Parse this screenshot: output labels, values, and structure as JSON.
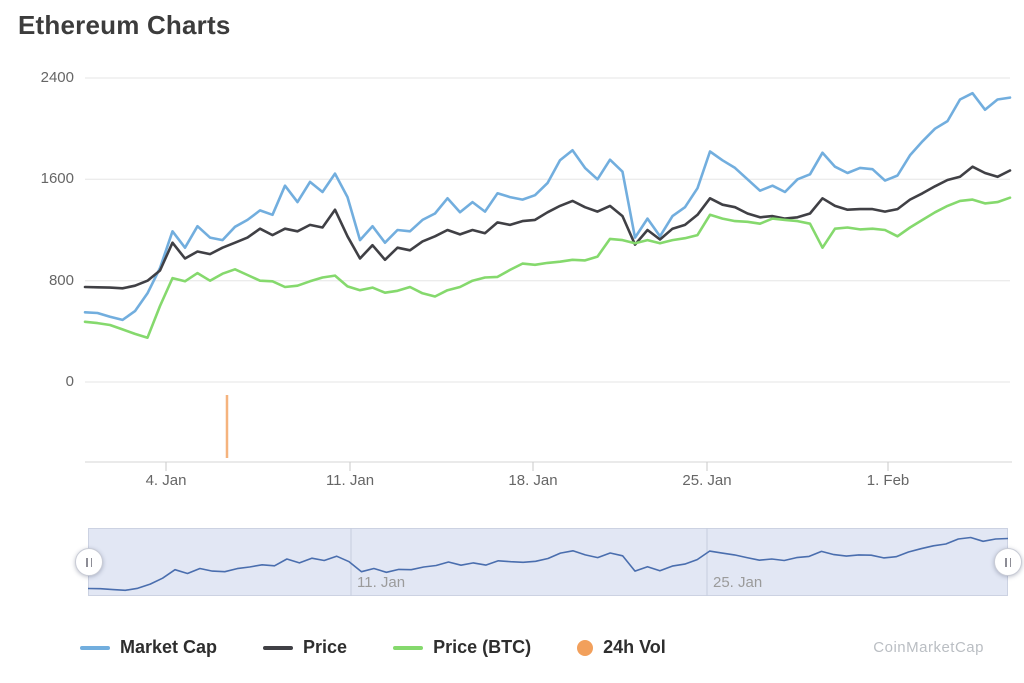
{
  "title": "Ethereum Charts",
  "watermark": "CoinMarketCap",
  "chart_data": {
    "type": "line",
    "title": "Ethereum Charts",
    "xlabel": "",
    "ylabel": "",
    "ylim": [
      0,
      2400
    ],
    "grid": "horizontal",
    "legend_position": "bottom",
    "x_ticks": [
      "4. Jan",
      "11. Jan",
      "18. Jan",
      "25. Jan",
      "1. Feb"
    ],
    "y_ticks": [
      "2400",
      "1600",
      "800",
      "0"
    ],
    "series": [
      {
        "name": "Market Cap",
        "color": "#72aede",
        "values": [
          550,
          545,
          515,
          490,
          560,
          700,
          900,
          1190,
          1060,
          1230,
          1140,
          1120,
          1225,
          1280,
          1355,
          1320,
          1550,
          1420,
          1580,
          1500,
          1645,
          1460,
          1120,
          1230,
          1100,
          1200,
          1190,
          1280,
          1330,
          1450,
          1340,
          1420,
          1345,
          1490,
          1460,
          1440,
          1475,
          1570,
          1750,
          1830,
          1690,
          1600,
          1755,
          1660,
          1140,
          1290,
          1150,
          1310,
          1380,
          1530,
          1820,
          1750,
          1690,
          1600,
          1510,
          1550,
          1500,
          1600,
          1640,
          1810,
          1700,
          1650,
          1690,
          1680,
          1590,
          1630,
          1790,
          1900,
          2000,
          2060,
          2230,
          2280,
          2150,
          2230,
          2245
        ]
      },
      {
        "name": "Price",
        "color": "#404045",
        "values": [
          750,
          748,
          745,
          740,
          760,
          800,
          880,
          1100,
          975,
          1030,
          1010,
          1060,
          1100,
          1140,
          1210,
          1160,
          1210,
          1190,
          1240,
          1220,
          1360,
          1150,
          975,
          1080,
          965,
          1060,
          1040,
          1110,
          1150,
          1200,
          1165,
          1200,
          1175,
          1260,
          1240,
          1270,
          1280,
          1340,
          1390,
          1430,
          1380,
          1345,
          1390,
          1310,
          1085,
          1200,
          1125,
          1210,
          1240,
          1320,
          1450,
          1400,
          1380,
          1330,
          1300,
          1310,
          1290,
          1300,
          1330,
          1450,
          1390,
          1360,
          1365,
          1365,
          1345,
          1365,
          1440,
          1490,
          1545,
          1595,
          1620,
          1700,
          1650,
          1620,
          1670
        ]
      },
      {
        "name": "Price (BTC)",
        "color": "#85d96d",
        "values": [
          475,
          465,
          450,
          415,
          380,
          350,
          600,
          820,
          795,
          860,
          800,
          855,
          890,
          845,
          800,
          795,
          750,
          760,
          795,
          825,
          840,
          755,
          725,
          745,
          705,
          720,
          750,
          700,
          675,
          725,
          750,
          800,
          825,
          830,
          885,
          935,
          925,
          940,
          950,
          965,
          960,
          990,
          1130,
          1120,
          1095,
          1120,
          1095,
          1120,
          1135,
          1160,
          1320,
          1290,
          1270,
          1265,
          1250,
          1290,
          1280,
          1270,
          1250,
          1060,
          1210,
          1220,
          1205,
          1210,
          1200,
          1150,
          1220,
          1280,
          1340,
          1390,
          1430,
          1440,
          1410,
          1420,
          1455
        ]
      }
    ],
    "volume": {
      "name": "24h Vol",
      "color": "#f2a05c",
      "bars": [
        {
          "pos": 0.1535,
          "height_frac": 0.84
        }
      ]
    },
    "navigator": {
      "labels": [
        "11. Jan",
        "25. Jan"
      ],
      "line_color": "#4a6eae",
      "bg": "#e2e7f4"
    }
  },
  "legend": {
    "items": [
      {
        "label": "Market Cap",
        "color": "#72aede",
        "marker": "line"
      },
      {
        "label": "Price",
        "color": "#404045",
        "marker": "line"
      },
      {
        "label": "Price (BTC)",
        "color": "#85d96d",
        "marker": "line"
      },
      {
        "label": "24h Vol",
        "color": "#f2a05c",
        "marker": "circle"
      }
    ]
  }
}
